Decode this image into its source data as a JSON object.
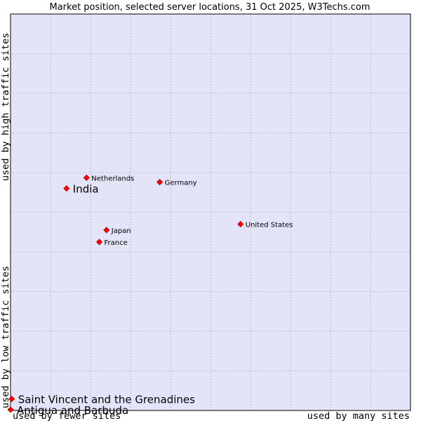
{
  "chart_data": {
    "type": "scatter",
    "title": "Market position, selected server locations, 31 Oct 2025, W3Techs.com",
    "xlabel_low": "used by fewer sites",
    "xlabel_high": "used by many sites",
    "ylabel_low": "used by low traffic sites",
    "ylabel_high": "used by high traffic sites",
    "xlim": [
      0,
      100
    ],
    "ylim": [
      0,
      100
    ],
    "grid": true,
    "colors": {
      "plot_bg": "#e4e4f8",
      "grid": "#9a9ab0",
      "frame": "#000000",
      "marker": "#ff0000",
      "marker_edge": "#aa0000"
    },
    "points": [
      {
        "name": "United States",
        "x": 57.5,
        "y": 47.0,
        "emphasis": false
      },
      {
        "name": "Germany",
        "x": 37.3,
        "y": 57.6,
        "emphasis": false
      },
      {
        "name": "Netherlands",
        "x": 19.0,
        "y": 58.7,
        "emphasis": false
      },
      {
        "name": "India",
        "x": 14.0,
        "y": 56.0,
        "emphasis": true
      },
      {
        "name": "Japan",
        "x": 24.0,
        "y": 45.5,
        "emphasis": false
      },
      {
        "name": "France",
        "x": 22.2,
        "y": 42.5,
        "emphasis": false
      },
      {
        "name": "Saint Vincent and the Grenadines",
        "x": 0.3,
        "y": 2.9,
        "emphasis": true
      },
      {
        "name": "Antigua and Barbuda",
        "x": 0.0,
        "y": 0.2,
        "emphasis": true
      }
    ]
  }
}
